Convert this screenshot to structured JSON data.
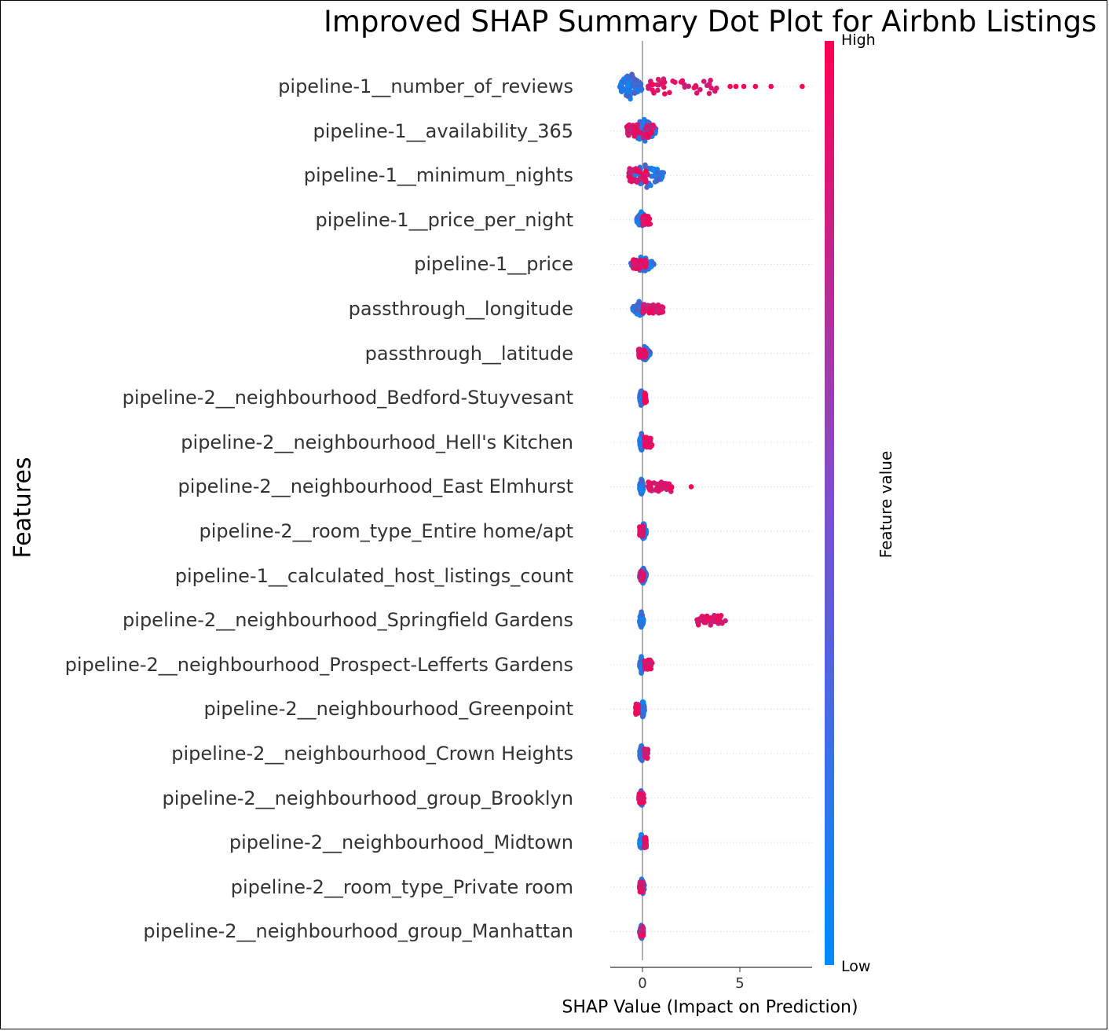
{
  "chart_data": {
    "type": "scatter",
    "subtype": "shap-summary-beeswarm",
    "title": "Improved SHAP Summary Dot Plot for Airbnb Listings",
    "xlabel": "SHAP Value (Impact on Prediction)",
    "ylabel": "Features",
    "xlim": [
      -1.7,
      8.6
    ],
    "xticks": [
      0,
      5
    ],
    "colorbar": {
      "title": "Feature value",
      "high_label": "High",
      "low_label": "Low",
      "high_color": "#ff0052",
      "low_color": "#008bfb"
    },
    "features": [
      {
        "name": "pipeline-1__number_of_reviews",
        "low_min": -1.2,
        "low_max": 0.0,
        "high_min": 0.3,
        "high_max": 4.0,
        "high_outliers": [
          4.5,
          4.8,
          5.2,
          5.8,
          6.6,
          8.2
        ],
        "height": 1.0
      },
      {
        "name": "pipeline-1__availability_365",
        "low_min": -0.6,
        "low_max": 0.7,
        "high_min": -0.8,
        "high_max": 0.6,
        "high_outliers": [],
        "height": 0.9
      },
      {
        "name": "pipeline-1__minimum_nights",
        "low_min": -0.7,
        "low_max": 1.1,
        "high_min": -0.7,
        "high_max": 0.3,
        "high_outliers": [],
        "height": 0.9
      },
      {
        "name": "pipeline-1__price_per_night",
        "low_min": -0.3,
        "low_max": 0.2,
        "high_min": 0.0,
        "high_max": 0.4,
        "high_outliers": [],
        "height": 0.6
      },
      {
        "name": "pipeline-1__price",
        "low_min": -0.6,
        "low_max": 0.6,
        "high_min": -0.5,
        "high_max": 0.2,
        "high_outliers": [],
        "height": 0.6
      },
      {
        "name": "passthrough__longitude",
        "low_min": -0.5,
        "low_max": 0.2,
        "high_min": 0.0,
        "high_max": 1.1,
        "high_outliers": [],
        "height": 0.55
      },
      {
        "name": "passthrough__latitude",
        "low_min": -0.2,
        "low_max": 0.4,
        "high_min": -0.2,
        "high_max": 0.2,
        "high_outliers": [],
        "height": 0.55
      },
      {
        "name": "pipeline-2__neighbourhood_Bedford-Stuyvesant",
        "low_min": -0.15,
        "low_max": 0.05,
        "high_min": 0.1,
        "high_max": 0.2,
        "high_outliers": [],
        "height": 0.65
      },
      {
        "name": "pipeline-2__neighbourhood_Hell's Kitchen",
        "low_min": -0.15,
        "low_max": 0.05,
        "high_min": 0.1,
        "high_max": 0.5,
        "high_outliers": [],
        "height": 0.65
      },
      {
        "name": "pipeline-2__neighbourhood_East Elmhurst",
        "low_min": -0.15,
        "low_max": 0.05,
        "high_min": 0.3,
        "high_max": 1.5,
        "high_outliers": [
          2.5
        ],
        "height": 0.65
      },
      {
        "name": "pipeline-2__room_type_Entire home/apt",
        "low_min": -0.1,
        "low_max": 0.2,
        "high_min": -0.15,
        "high_max": 0.05,
        "high_outliers": [],
        "height": 0.65
      },
      {
        "name": "pipeline-1__calculated_host_listings_count",
        "low_min": -0.15,
        "low_max": 0.2,
        "high_min": -0.1,
        "high_max": 0.1,
        "high_outliers": [],
        "height": 0.6
      },
      {
        "name": "pipeline-2__neighbourhood_Springfield Gardens",
        "low_min": -0.15,
        "low_max": 0.05,
        "high_min": 2.8,
        "high_max": 4.3,
        "high_outliers": [],
        "height": 0.65
      },
      {
        "name": "pipeline-2__neighbourhood_Prospect-Lefferts Gardens",
        "low_min": -0.15,
        "low_max": 0.05,
        "high_min": 0.1,
        "high_max": 0.5,
        "high_outliers": [],
        "height": 0.65
      },
      {
        "name": "pipeline-2__neighbourhood_Greenpoint",
        "low_min": -0.05,
        "low_max": 0.1,
        "high_min": -0.35,
        "high_max": -0.2,
        "high_outliers": [],
        "height": 0.65
      },
      {
        "name": "pipeline-2__neighbourhood_Crown Heights",
        "low_min": -0.15,
        "low_max": 0.05,
        "high_min": 0.1,
        "high_max": 0.3,
        "high_outliers": [],
        "height": 0.65
      },
      {
        "name": "pipeline-2__neighbourhood_group_Brooklyn",
        "low_min": -0.15,
        "low_max": 0.05,
        "high_min": -0.2,
        "high_max": 0.1,
        "high_outliers": [],
        "height": 0.65
      },
      {
        "name": "pipeline-2__neighbourhood_Midtown",
        "low_min": -0.15,
        "low_max": 0.05,
        "high_min": 0.1,
        "high_max": 0.2,
        "high_outliers": [],
        "height": 0.65
      },
      {
        "name": "pipeline-2__room_type_Private room",
        "low_min": -0.15,
        "low_max": 0.1,
        "high_min": -0.15,
        "high_max": 0.05,
        "high_outliers": [],
        "height": 0.65
      },
      {
        "name": "pipeline-2__neighbourhood_group_Manhattan",
        "low_min": -0.15,
        "low_max": 0.05,
        "high_min": -0.1,
        "high_max": 0.05,
        "high_outliers": [],
        "height": 0.65
      }
    ]
  }
}
